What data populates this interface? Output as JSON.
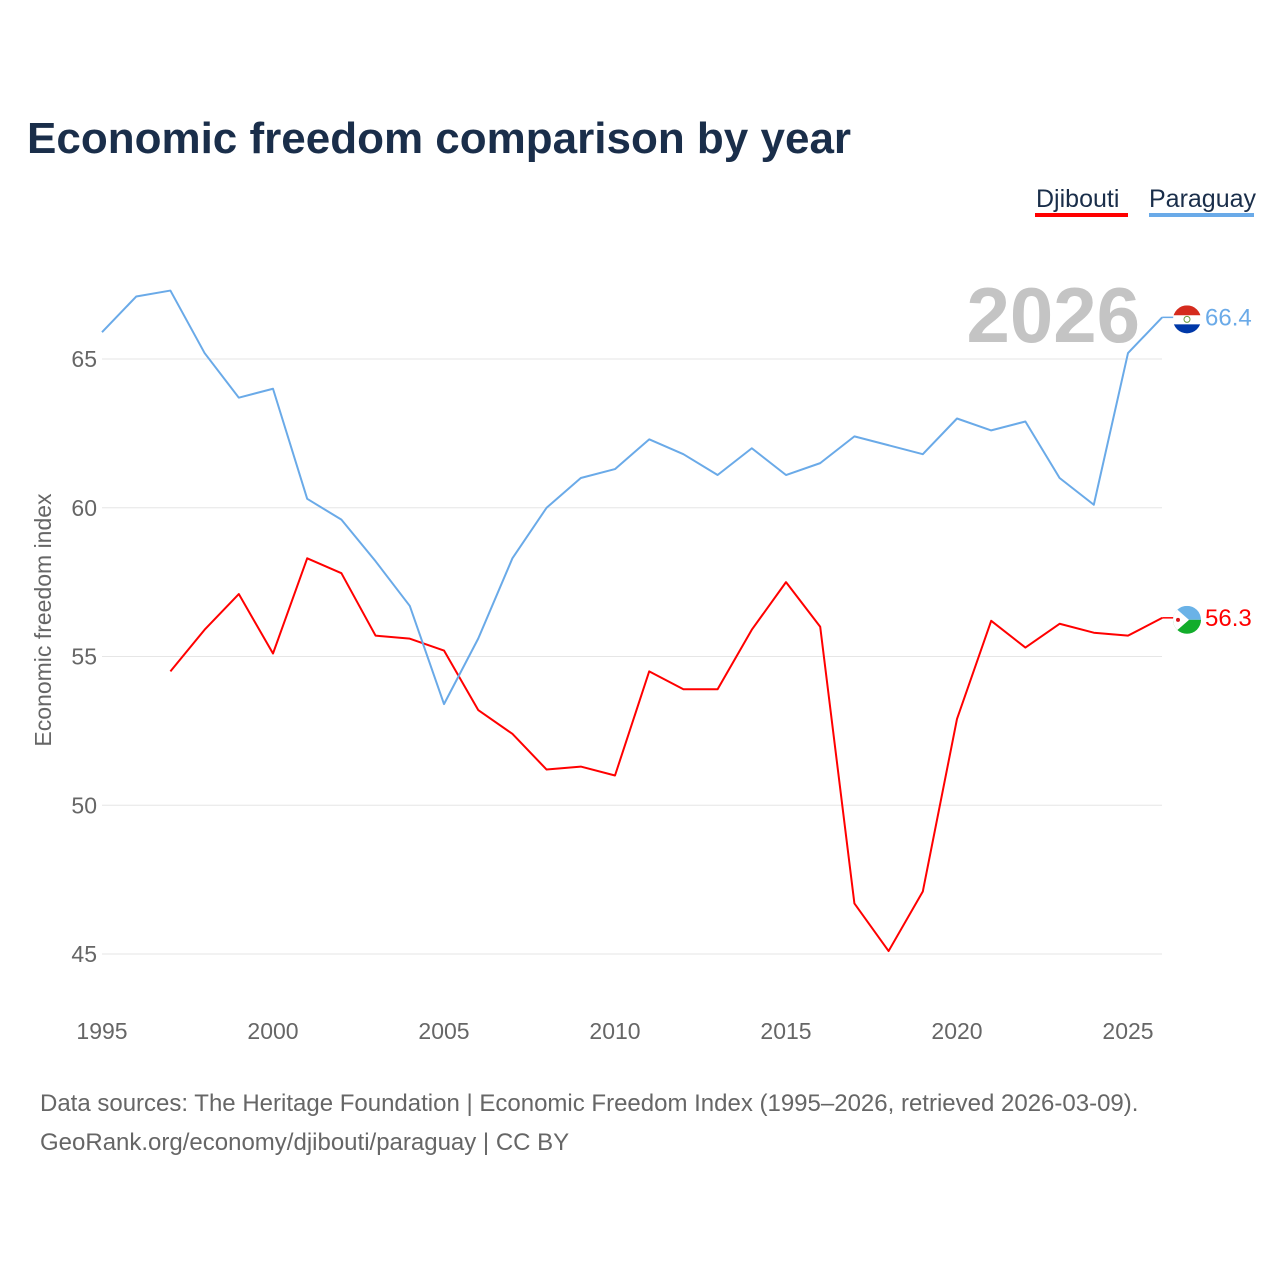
{
  "chart_data": {
    "type": "line",
    "title": "Economic freedom comparison by year",
    "xlabel": "",
    "ylabel": "Economic freedom index",
    "xlim": [
      1995,
      2026
    ],
    "ylim": [
      44,
      68
    ],
    "xticks": [
      1995,
      2000,
      2005,
      2010,
      2015,
      2020,
      2025
    ],
    "yticks": [
      45,
      50,
      55,
      60,
      65
    ],
    "grid": true,
    "legend_position": "top-right",
    "highlight_year": "2026",
    "series": [
      {
        "name": "Djibouti",
        "color": "#ff0000",
        "end_label": "56.3",
        "x": [
          1997,
          1998,
          1999,
          2000,
          2001,
          2002,
          2003,
          2004,
          2005,
          2006,
          2007,
          2008,
          2009,
          2010,
          2011,
          2012,
          2013,
          2014,
          2015,
          2016,
          2017,
          2018,
          2019,
          2020,
          2021,
          2022,
          2023,
          2024,
          2025,
          2026
        ],
        "values": [
          54.5,
          55.9,
          57.1,
          55.1,
          58.3,
          57.8,
          55.7,
          55.6,
          55.2,
          53.2,
          52.4,
          51.2,
          51.3,
          51.0,
          54.5,
          53.9,
          53.9,
          55.9,
          57.5,
          56.0,
          46.7,
          45.1,
          47.1,
          52.9,
          56.2,
          55.3,
          56.1,
          55.8,
          55.7,
          56.3
        ]
      },
      {
        "name": "Paraguay",
        "color": "#6aaae8",
        "end_label": "66.4",
        "x": [
          1995,
          1996,
          1997,
          1998,
          1999,
          2000,
          2001,
          2002,
          2003,
          2004,
          2005,
          2006,
          2007,
          2008,
          2009,
          2010,
          2011,
          2012,
          2013,
          2014,
          2015,
          2016,
          2017,
          2018,
          2019,
          2020,
          2021,
          2022,
          2023,
          2024,
          2025,
          2026
        ],
        "values": [
          65.9,
          67.1,
          67.3,
          65.2,
          63.7,
          64.0,
          60.3,
          59.6,
          58.2,
          56.7,
          53.4,
          55.6,
          58.3,
          60.0,
          61.0,
          61.3,
          62.3,
          61.8,
          61.1,
          62.0,
          61.1,
          61.5,
          62.4,
          62.1,
          61.8,
          63.0,
          62.6,
          62.9,
          61.0,
          60.1,
          65.2,
          66.4
        ]
      }
    ]
  },
  "footer": {
    "line1": "Data sources: The Heritage Foundation | Economic Freedom Index (1995–2026, retrieved 2026-03-09).",
    "line2": "GeoRank.org/economy/djibouti/paraguay | CC BY"
  }
}
